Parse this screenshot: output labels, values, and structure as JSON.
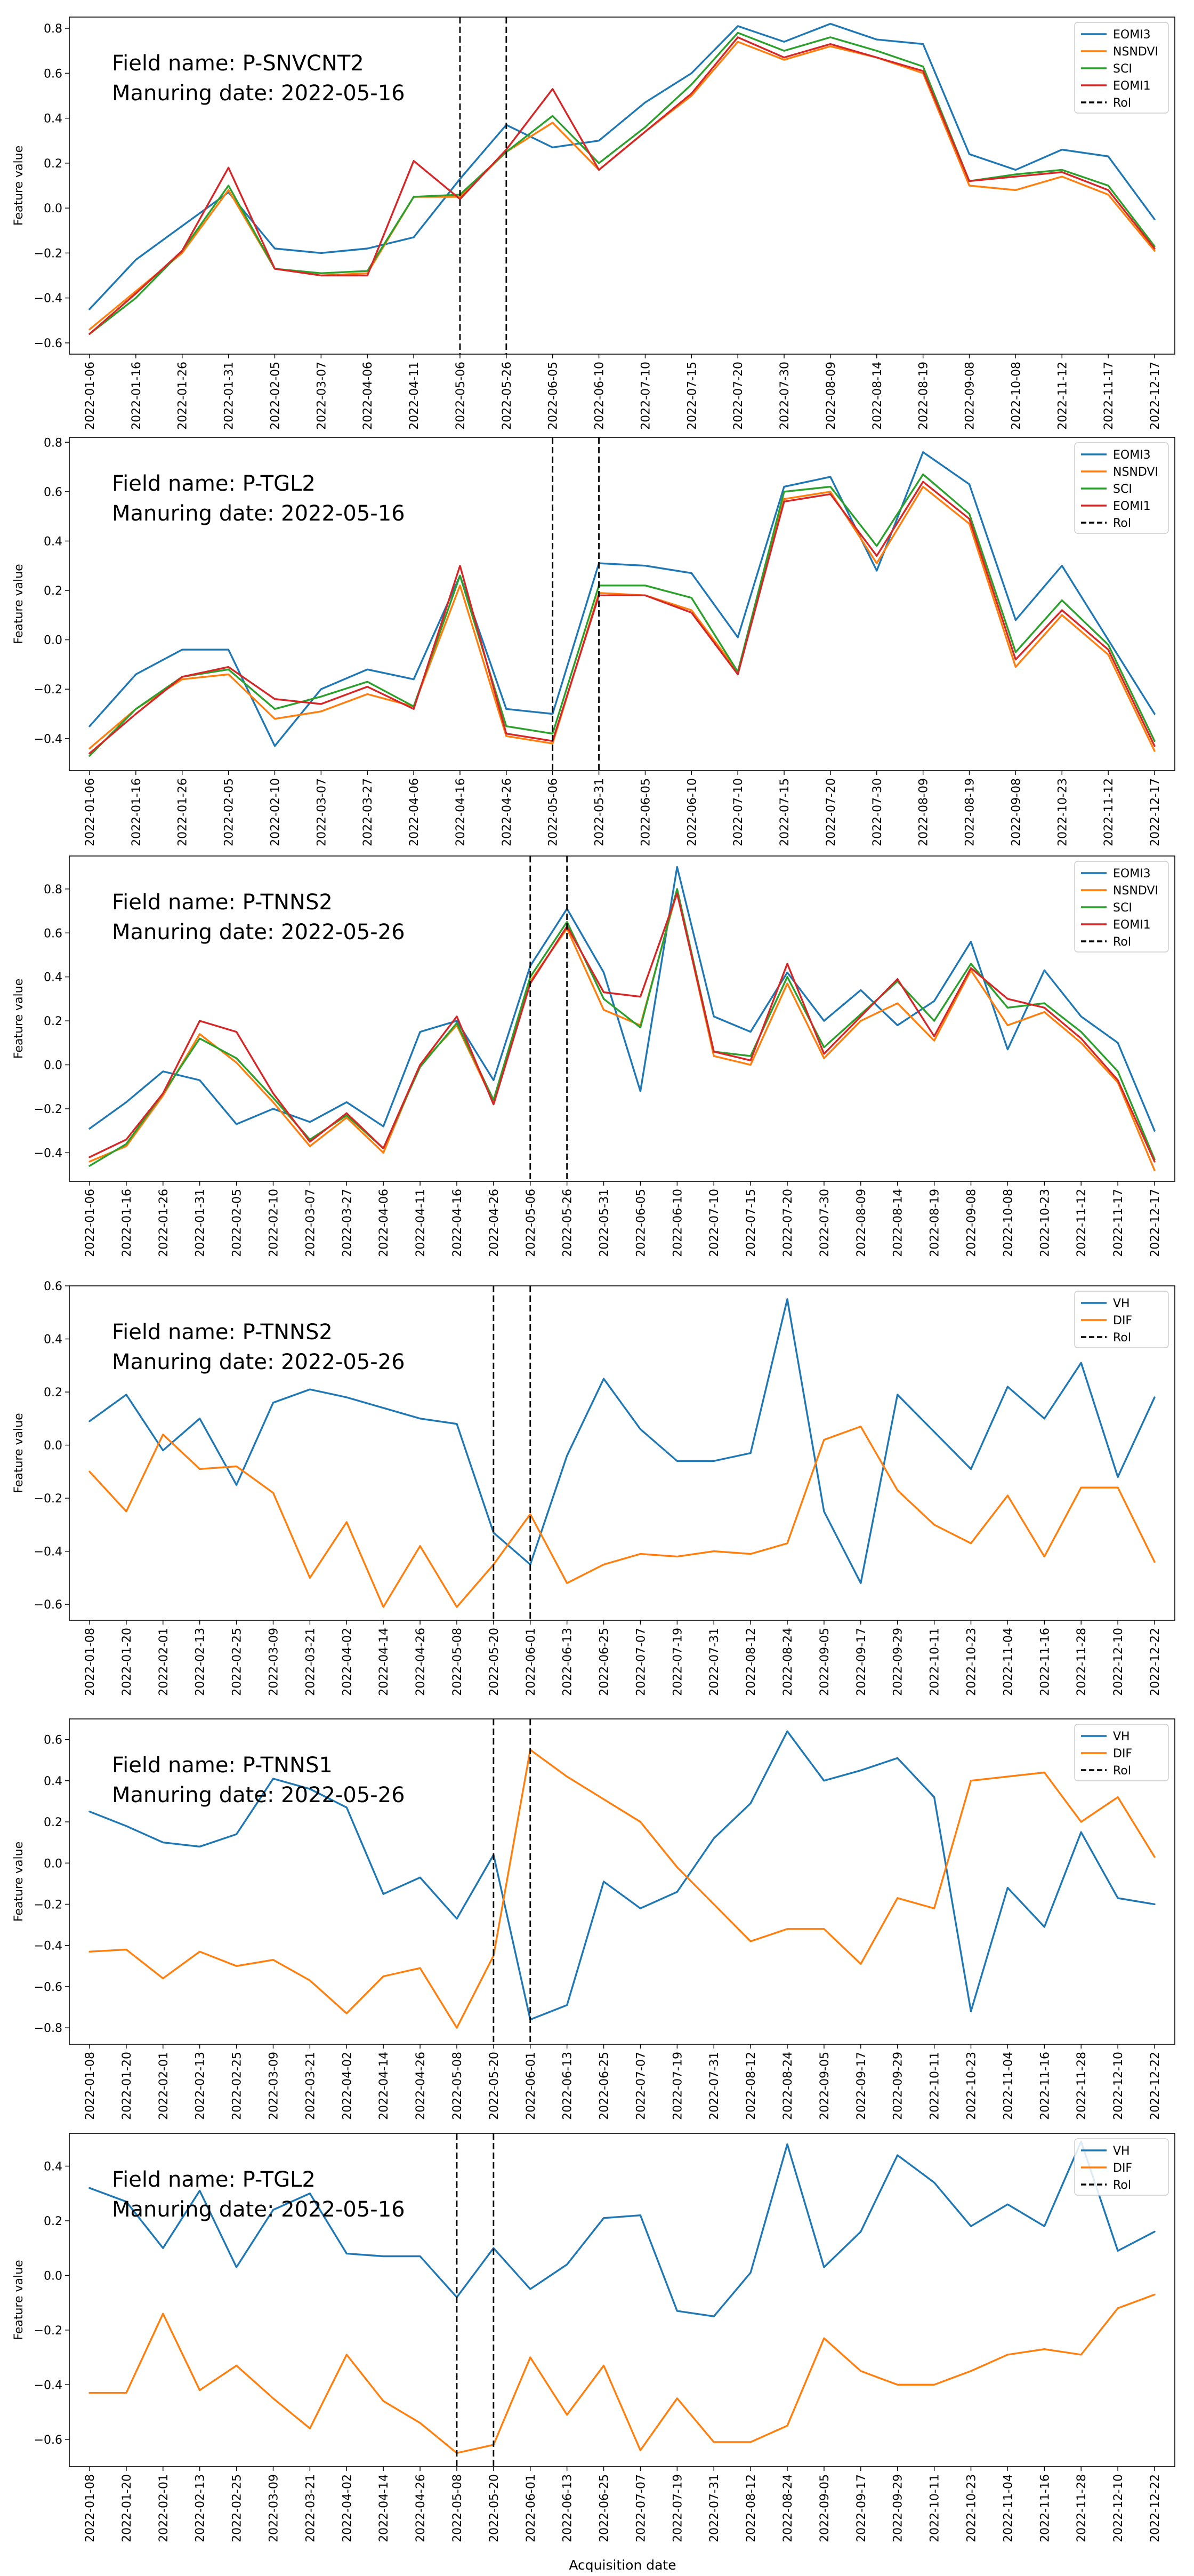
{
  "figure": {
    "xlabel": "Acquisition date",
    "ylabel": "Feature value"
  },
  "chart_data": [
    {
      "type": "line",
      "annotation": [
        "Field name: P-SNVCNT2",
        "Manuring date: 2022-05-16"
      ],
      "xlabel": "",
      "ylabel": "Feature value",
      "ylim": [
        -0.65,
        0.85
      ],
      "yticks": [
        -0.6,
        -0.4,
        -0.2,
        0.0,
        0.2,
        0.4,
        0.6,
        0.8
      ],
      "legend_position": "top-right",
      "categories": [
        "2022-01-06",
        "2022-01-16",
        "2022-01-26",
        "2022-01-31",
        "2022-02-05",
        "2022-03-07",
        "2022-04-06",
        "2022-04-11",
        "2022-05-06",
        "2022-05-26",
        "2022-06-05",
        "2022-06-10",
        "2022-07-10",
        "2022-07-15",
        "2022-07-20",
        "2022-07-30",
        "2022-08-09",
        "2022-08-14",
        "2022-08-19",
        "2022-09-08",
        "2022-10-08",
        "2022-11-12",
        "2022-11-17",
        "2022-12-17"
      ],
      "series": [
        {
          "name": "EOMI3",
          "color": "#1f77b4",
          "values": [
            -0.45,
            -0.23,
            -0.08,
            0.07,
            -0.18,
            -0.2,
            -0.18,
            -0.13,
            0.13,
            0.37,
            0.27,
            0.3,
            0.47,
            0.6,
            0.81,
            0.74,
            0.82,
            0.75,
            0.73,
            0.24,
            0.17,
            0.26,
            0.23,
            -0.05
          ]
        },
        {
          "name": "NSNDVI",
          "color": "#ff7f0e",
          "values": [
            -0.54,
            -0.37,
            -0.2,
            0.08,
            -0.27,
            -0.3,
            -0.29,
            0.05,
            0.05,
            0.25,
            0.38,
            0.17,
            0.34,
            0.5,
            0.74,
            0.66,
            0.72,
            0.67,
            0.6,
            0.1,
            0.08,
            0.14,
            0.06,
            -0.19
          ]
        },
        {
          "name": "SCI",
          "color": "#2ca02c",
          "values": [
            -0.56,
            -0.4,
            -0.19,
            0.1,
            -0.27,
            -0.29,
            -0.28,
            0.05,
            0.06,
            0.25,
            0.41,
            0.2,
            0.36,
            0.55,
            0.78,
            0.7,
            0.76,
            0.7,
            0.63,
            0.12,
            0.15,
            0.17,
            0.1,
            -0.17
          ]
        },
        {
          "name": "EOMI1",
          "color": "#d62728",
          "values": [
            -0.56,
            -0.38,
            -0.19,
            0.18,
            -0.27,
            -0.3,
            -0.3,
            0.21,
            0.04,
            0.26,
            0.53,
            0.17,
            0.34,
            0.51,
            0.76,
            0.67,
            0.73,
            0.67,
            0.61,
            0.12,
            0.14,
            0.16,
            0.08,
            -0.18
          ]
        }
      ],
      "roi": {
        "name": "RoI",
        "start": "2022-05-06",
        "end": "2022-05-26"
      }
    },
    {
      "type": "line",
      "annotation": [
        "Field name: P-TGL2",
        "Manuring date: 2022-05-16"
      ],
      "xlabel": "",
      "ylabel": "Feature value",
      "ylim": [
        -0.53,
        0.82
      ],
      "yticks": [
        -0.4,
        -0.2,
        0.0,
        0.2,
        0.4,
        0.6,
        0.8
      ],
      "legend_position": "top-right",
      "categories": [
        "2022-01-06",
        "2022-01-16",
        "2022-01-26",
        "2022-02-05",
        "2022-02-10",
        "2022-03-07",
        "2022-03-27",
        "2022-04-06",
        "2022-04-16",
        "2022-04-26",
        "2022-05-06",
        "2022-05-31",
        "2022-06-05",
        "2022-06-10",
        "2022-07-10",
        "2022-07-15",
        "2022-07-20",
        "2022-07-30",
        "2022-08-09",
        "2022-08-19",
        "2022-09-08",
        "2022-10-23",
        "2022-11-12",
        "2022-12-17"
      ],
      "series": [
        {
          "name": "EOMI3",
          "color": "#1f77b4",
          "values": [
            -0.35,
            -0.14,
            -0.04,
            -0.04,
            -0.43,
            -0.2,
            -0.12,
            -0.16,
            0.26,
            -0.28,
            -0.3,
            0.31,
            0.3,
            0.27,
            0.01,
            0.62,
            0.66,
            0.28,
            0.76,
            0.63,
            0.08,
            0.3,
            0.0,
            -0.3
          ]
        },
        {
          "name": "NSNDVI",
          "color": "#ff7f0e",
          "values": [
            -0.44,
            -0.28,
            -0.16,
            -0.14,
            -0.32,
            -0.29,
            -0.22,
            -0.27,
            0.22,
            -0.39,
            -0.42,
            0.19,
            0.18,
            0.12,
            -0.13,
            0.57,
            0.6,
            0.31,
            0.62,
            0.47,
            -0.11,
            0.1,
            -0.06,
            -0.45
          ]
        },
        {
          "name": "SCI",
          "color": "#2ca02c",
          "values": [
            -0.47,
            -0.28,
            -0.15,
            -0.12,
            -0.28,
            -0.23,
            -0.17,
            -0.27,
            0.26,
            -0.35,
            -0.38,
            0.22,
            0.22,
            0.17,
            -0.13,
            0.6,
            0.62,
            0.38,
            0.67,
            0.51,
            -0.05,
            0.16,
            -0.02,
            -0.41
          ]
        },
        {
          "name": "EOMI1",
          "color": "#d62728",
          "values": [
            -0.46,
            -0.3,
            -0.15,
            -0.11,
            -0.24,
            -0.26,
            -0.19,
            -0.28,
            0.3,
            -0.38,
            -0.41,
            0.18,
            0.18,
            0.11,
            -0.14,
            0.56,
            0.59,
            0.34,
            0.64,
            0.49,
            -0.08,
            0.12,
            -0.04,
            -0.43
          ]
        }
      ],
      "roi": {
        "name": "RoI",
        "start": "2022-05-06",
        "end": "2022-05-31"
      }
    },
    {
      "type": "line",
      "annotation": [
        "Field name: P-TNNS2",
        "Manuring date: 2022-05-26"
      ],
      "xlabel": "",
      "ylabel": "Feature value",
      "ylim": [
        -0.53,
        0.95
      ],
      "yticks": [
        -0.4,
        -0.2,
        0.0,
        0.2,
        0.4,
        0.6,
        0.8
      ],
      "legend_position": "top-right",
      "categories": [
        "2022-01-06",
        "2022-01-16",
        "2022-01-26",
        "2022-01-31",
        "2022-02-05",
        "2022-02-10",
        "2022-03-07",
        "2022-03-27",
        "2022-04-06",
        "2022-04-11",
        "2022-04-16",
        "2022-04-26",
        "2022-05-06",
        "2022-05-26",
        "2022-05-31",
        "2022-06-05",
        "2022-06-10",
        "2022-07-10",
        "2022-07-15",
        "2022-07-20",
        "2022-07-30",
        "2022-08-09",
        "2022-08-14",
        "2022-08-19",
        "2022-09-08",
        "2022-10-08",
        "2022-10-23",
        "2022-11-12",
        "2022-11-17",
        "2022-12-17"
      ],
      "series": [
        {
          "name": "EOMI3",
          "color": "#1f77b4",
          "values": [
            -0.29,
            -0.17,
            -0.03,
            -0.07,
            -0.27,
            -0.2,
            -0.26,
            -0.17,
            -0.28,
            0.15,
            0.2,
            -0.07,
            0.45,
            0.71,
            0.42,
            -0.12,
            0.9,
            0.22,
            0.15,
            0.42,
            0.2,
            0.34,
            0.18,
            0.29,
            0.56,
            0.07,
            0.43,
            0.22,
            0.1,
            -0.3
          ]
        },
        {
          "name": "NSNDVI",
          "color": "#ff7f0e",
          "values": [
            -0.44,
            -0.37,
            -0.14,
            0.14,
            0.01,
            -0.17,
            -0.37,
            -0.24,
            -0.4,
            0.0,
            0.18,
            -0.17,
            0.38,
            0.62,
            0.25,
            0.18,
            0.79,
            0.04,
            0.0,
            0.37,
            0.03,
            0.2,
            0.28,
            0.11,
            0.43,
            0.18,
            0.24,
            0.1,
            -0.08,
            -0.48
          ]
        },
        {
          "name": "SCI",
          "color": "#2ca02c",
          "values": [
            -0.46,
            -0.36,
            -0.13,
            0.12,
            0.03,
            -0.15,
            -0.34,
            -0.23,
            -0.38,
            -0.01,
            0.19,
            -0.16,
            0.4,
            0.65,
            0.3,
            0.17,
            0.8,
            0.06,
            0.04,
            0.4,
            0.08,
            0.23,
            0.38,
            0.2,
            0.46,
            0.26,
            0.28,
            0.15,
            -0.03,
            -0.43
          ]
        },
        {
          "name": "EOMI1",
          "color": "#d62728",
          "values": [
            -0.42,
            -0.34,
            -0.13,
            0.2,
            0.15,
            -0.13,
            -0.35,
            -0.22,
            -0.38,
            0.0,
            0.22,
            -0.18,
            0.37,
            0.63,
            0.33,
            0.31,
            0.78,
            0.06,
            0.02,
            0.46,
            0.05,
            0.22,
            0.39,
            0.13,
            0.44,
            0.3,
            0.26,
            0.12,
            -0.07,
            -0.44
          ]
        }
      ],
      "roi": {
        "name": "RoI",
        "start": "2022-05-06",
        "end": "2022-05-26"
      }
    },
    {
      "type": "line",
      "annotation": [
        "Field name: P-TNNS2",
        "Manuring date: 2022-05-26"
      ],
      "xlabel": "",
      "ylabel": "Feature value",
      "ylim": [
        -0.66,
        0.6
      ],
      "yticks": [
        -0.6,
        -0.4,
        -0.2,
        0.0,
        0.2,
        0.4,
        0.6
      ],
      "legend_position": "top-right",
      "categories": [
        "2022-01-08",
        "2022-01-20",
        "2022-02-01",
        "2022-02-13",
        "2022-02-25",
        "2022-03-09",
        "2022-03-21",
        "2022-04-02",
        "2022-04-14",
        "2022-04-26",
        "2022-05-08",
        "2022-05-20",
        "2022-06-01",
        "2022-06-13",
        "2022-06-25",
        "2022-07-07",
        "2022-07-19",
        "2022-07-31",
        "2022-08-12",
        "2022-08-24",
        "2022-09-05",
        "2022-09-17",
        "2022-09-29",
        "2022-10-11",
        "2022-10-23",
        "2022-11-04",
        "2022-11-16",
        "2022-11-28",
        "2022-12-10",
        "2022-12-22"
      ],
      "series": [
        {
          "name": "VH",
          "color": "#1f77b4",
          "values": [
            0.09,
            0.19,
            -0.02,
            0.1,
            -0.15,
            0.16,
            0.21,
            0.18,
            0.14,
            0.1,
            0.08,
            -0.33,
            -0.45,
            -0.04,
            0.25,
            0.06,
            -0.06,
            -0.06,
            -0.03,
            0.55,
            -0.25,
            -0.52,
            0.19,
            0.05,
            -0.09,
            0.22,
            0.1,
            0.31,
            -0.12,
            0.18
          ]
        },
        {
          "name": "DIF",
          "color": "#ff7f0e",
          "values": [
            -0.1,
            -0.25,
            0.04,
            -0.09,
            -0.08,
            -0.18,
            -0.5,
            -0.29,
            -0.61,
            -0.38,
            -0.61,
            -0.45,
            -0.26,
            -0.52,
            -0.45,
            -0.41,
            -0.42,
            -0.4,
            -0.41,
            -0.37,
            0.02,
            0.07,
            -0.17,
            -0.3,
            -0.37,
            -0.19,
            -0.42,
            -0.16,
            -0.16,
            -0.44
          ]
        }
      ],
      "roi": {
        "name": "RoI",
        "start": "2022-05-20",
        "end": "2022-06-01"
      }
    },
    {
      "type": "line",
      "annotation": [
        "Field name: P-TNNS1",
        "Manuring date: 2022-05-26"
      ],
      "xlabel": "",
      "ylabel": "Feature value",
      "ylim": [
        -0.88,
        0.7
      ],
      "yticks": [
        -0.8,
        -0.6,
        -0.4,
        -0.2,
        0.0,
        0.2,
        0.4,
        0.6
      ],
      "legend_position": "top-right",
      "categories": [
        "2022-01-08",
        "2022-01-20",
        "2022-02-01",
        "2022-02-13",
        "2022-02-25",
        "2022-03-09",
        "2022-03-21",
        "2022-04-02",
        "2022-04-14",
        "2022-04-26",
        "2022-05-08",
        "2022-05-20",
        "2022-06-01",
        "2022-06-13",
        "2022-06-25",
        "2022-07-07",
        "2022-07-19",
        "2022-07-31",
        "2022-08-12",
        "2022-08-24",
        "2022-09-05",
        "2022-09-17",
        "2022-09-29",
        "2022-10-11",
        "2022-10-23",
        "2022-11-04",
        "2022-11-16",
        "2022-11-28",
        "2022-12-10",
        "2022-12-22"
      ],
      "series": [
        {
          "name": "VH",
          "color": "#1f77b4",
          "values": [
            0.25,
            0.18,
            0.1,
            0.08,
            0.14,
            0.41,
            0.36,
            0.27,
            -0.15,
            -0.07,
            -0.27,
            0.04,
            -0.76,
            -0.69,
            -0.09,
            -0.22,
            -0.14,
            0.12,
            0.29,
            0.64,
            0.4,
            0.45,
            0.51,
            0.32,
            -0.72,
            -0.12,
            -0.31,
            0.15,
            -0.17,
            -0.2
          ]
        },
        {
          "name": "DIF",
          "color": "#ff7f0e",
          "values": [
            -0.43,
            -0.42,
            -0.56,
            -0.43,
            -0.5,
            -0.47,
            -0.57,
            -0.73,
            -0.55,
            -0.51,
            -0.8,
            -0.45,
            0.55,
            0.42,
            0.31,
            0.2,
            -0.02,
            -0.2,
            -0.38,
            -0.32,
            -0.32,
            -0.49,
            -0.17,
            -0.22,
            0.4,
            0.42,
            0.44,
            0.2,
            0.32,
            0.03
          ]
        }
      ],
      "roi": {
        "name": "RoI",
        "start": "2022-05-20",
        "end": "2022-06-01"
      }
    },
    {
      "type": "line",
      "annotation": [
        "Field name: P-TGL2",
        "Manuring date: 2022-05-16"
      ],
      "xlabel": "Acquisition date",
      "ylabel": "Feature value",
      "ylim": [
        -0.7,
        0.52
      ],
      "yticks": [
        -0.6,
        -0.4,
        -0.2,
        0.0,
        0.2,
        0.4
      ],
      "legend_position": "top-right",
      "categories": [
        "2022-01-08",
        "2022-01-20",
        "2022-02-01",
        "2022-02-13",
        "2022-02-25",
        "2022-03-09",
        "2022-03-21",
        "2022-04-02",
        "2022-04-14",
        "2022-04-26",
        "2022-05-08",
        "2022-05-20",
        "2022-06-01",
        "2022-06-13",
        "2022-06-25",
        "2022-07-07",
        "2022-07-19",
        "2022-07-31",
        "2022-08-12",
        "2022-08-24",
        "2022-09-05",
        "2022-09-17",
        "2022-09-29",
        "2022-10-11",
        "2022-10-23",
        "2022-11-04",
        "2022-11-16",
        "2022-11-28",
        "2022-12-10",
        "2022-12-22"
      ],
      "series": [
        {
          "name": "VH",
          "color": "#1f77b4",
          "values": [
            0.32,
            0.27,
            0.1,
            0.31,
            0.03,
            0.24,
            0.3,
            0.08,
            0.07,
            0.07,
            -0.08,
            0.1,
            -0.05,
            0.04,
            0.21,
            0.22,
            -0.13,
            -0.15,
            0.01,
            0.48,
            0.03,
            0.16,
            0.44,
            0.34,
            0.18,
            0.26,
            0.18,
            0.49,
            0.09,
            0.16
          ]
        },
        {
          "name": "DIF",
          "color": "#ff7f0e",
          "values": [
            -0.43,
            -0.43,
            -0.14,
            -0.42,
            -0.33,
            -0.45,
            -0.56,
            -0.29,
            -0.46,
            -0.54,
            -0.65,
            -0.62,
            -0.3,
            -0.51,
            -0.33,
            -0.64,
            -0.45,
            -0.61,
            -0.61,
            -0.55,
            -0.23,
            -0.35,
            -0.4,
            -0.4,
            -0.35,
            -0.29,
            -0.27,
            -0.29,
            -0.12,
            -0.07
          ]
        }
      ],
      "roi": {
        "name": "RoI",
        "start": "2022-05-08",
        "end": "2022-05-20"
      }
    }
  ]
}
